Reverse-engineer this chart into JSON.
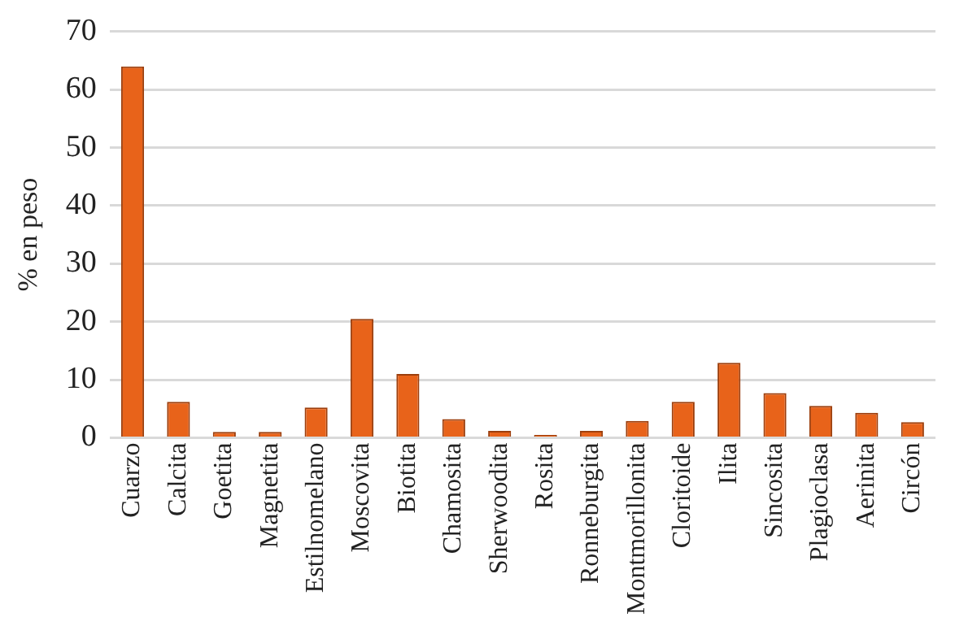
{
  "chart_data": {
    "type": "bar",
    "ylabel": "% en peso",
    "categories": [
      "Cuarzo",
      "Calcita",
      "Goetita",
      "Magnetita",
      "Estilnomelano",
      "Moscovita",
      "Biotita",
      "Chamosita",
      "Sherwoodita",
      "Rosita",
      "Ronneburgita",
      "Montmorillonita",
      "Cloritoide",
      "Ilita",
      "Sincosita",
      "Plagioclasa",
      "Aerinita",
      "Circón"
    ],
    "values": [
      64,
      6.2,
      1,
      1,
      5.2,
      20.5,
      11,
      3.2,
      1.2,
      0.5,
      1.2,
      2.9,
      6.2,
      12.9,
      7.7,
      5.5,
      4.3,
      2.7
    ],
    "color": "#e8631a",
    "ylim": [
      0,
      70
    ],
    "yticks": [
      0,
      10,
      20,
      30,
      40,
      50,
      60,
      70
    ],
    "grid": "y",
    "legend": false
  }
}
